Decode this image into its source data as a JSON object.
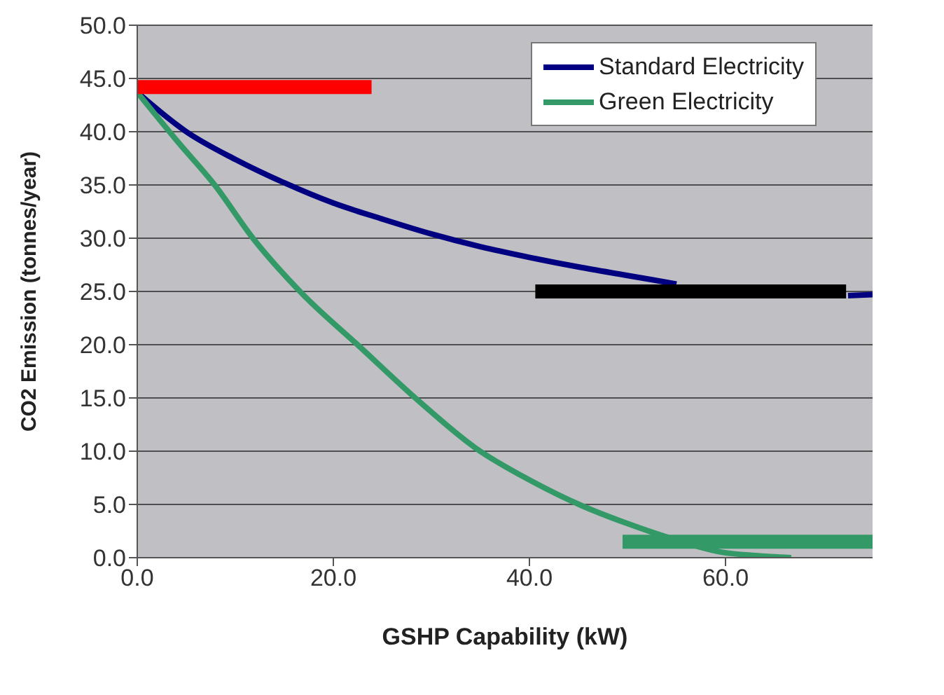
{
  "chart_data": {
    "type": "line",
    "xlabel": "GSHP Capability (kW)",
    "ylabel": "CO2 Emission (tonnes/year)",
    "xlim": [
      0,
      75
    ],
    "xticks": [
      {
        "value": 0,
        "label": "0.0"
      },
      {
        "value": 20,
        "label": "20.0"
      },
      {
        "value": 40,
        "label": "40.0"
      },
      {
        "value": 60,
        "label": "60.0"
      }
    ],
    "ylim": [
      0,
      50
    ],
    "yticks": [
      {
        "value": 0,
        "label": "0.0"
      },
      {
        "value": 5,
        "label": "5.0"
      },
      {
        "value": 10,
        "label": "10.0"
      },
      {
        "value": 15,
        "label": "15.0"
      },
      {
        "value": 20,
        "label": "20.0"
      },
      {
        "value": 25,
        "label": "25.0"
      },
      {
        "value": 30,
        "label": "30.0"
      },
      {
        "value": 35,
        "label": "35.0"
      },
      {
        "value": 40,
        "label": "40.0"
      },
      {
        "value": 45,
        "label": "45.0"
      },
      {
        "value": 50,
        "label": "50.0"
      }
    ],
    "grid": "y",
    "legend": "top right",
    "marker": "none",
    "line_style": "solid",
    "series": [
      {
        "name": "Standard Electricity",
        "color": "#000080",
        "x": [
          0,
          5,
          10,
          15,
          20,
          25,
          30,
          35,
          40,
          45,
          50,
          55,
          60,
          65,
          72.5,
          75
        ],
        "values": [
          43.7,
          40.0,
          37.4,
          35.2,
          33.3,
          31.8,
          30.4,
          29.2,
          28.2,
          27.3,
          26.5,
          25.7,
          null,
          null,
          24.6,
          24.7
        ]
      },
      {
        "name": "Green Electricity",
        "color": "#339966",
        "x": [
          0,
          4,
          7.9,
          11.8,
          16.7,
          22.7,
          28.6,
          34.5,
          40,
          45.3,
          50,
          53.8,
          59.7,
          63,
          66.7
        ],
        "values": [
          43.7,
          39.2,
          35.0,
          30.0,
          24.9,
          19.8,
          14.8,
          10.3,
          7.3,
          4.9,
          3.2,
          2.0,
          0.5,
          0.2,
          0
        ]
      },
      {
        "color": "#ff0000",
        "x": [
          0,
          23.9
        ],
        "values": [
          44.2,
          44.2
        ]
      },
      {
        "color": "#000000",
        "x": [
          40.6,
          72.3
        ],
        "values": [
          25,
          25
        ]
      },
      {
        "color": "#339966",
        "x": [
          49.5,
          75
        ],
        "values": [
          1.5,
          1.5
        ]
      }
    ]
  }
}
